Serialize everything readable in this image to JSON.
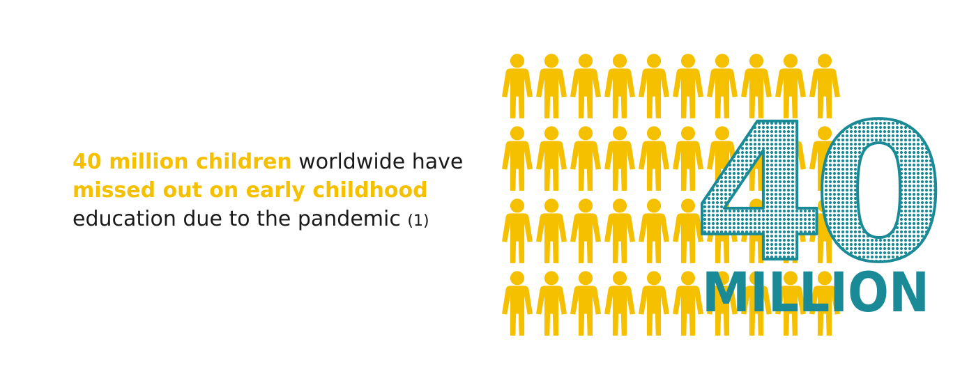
{
  "statement": {
    "line1_highlight": "40 million children",
    "line1_rest": " worldwide have",
    "line2_highlight": "missed out on early childhood",
    "line3_text": "education due to the pandemic",
    "footnote_ref": "(1)"
  },
  "figure": {
    "big_number": "40",
    "unit": "MILLION",
    "icon_rows": 4,
    "icon_cols": 10,
    "icon_color": "#f5c000",
    "number_color": "#1a8a96"
  }
}
